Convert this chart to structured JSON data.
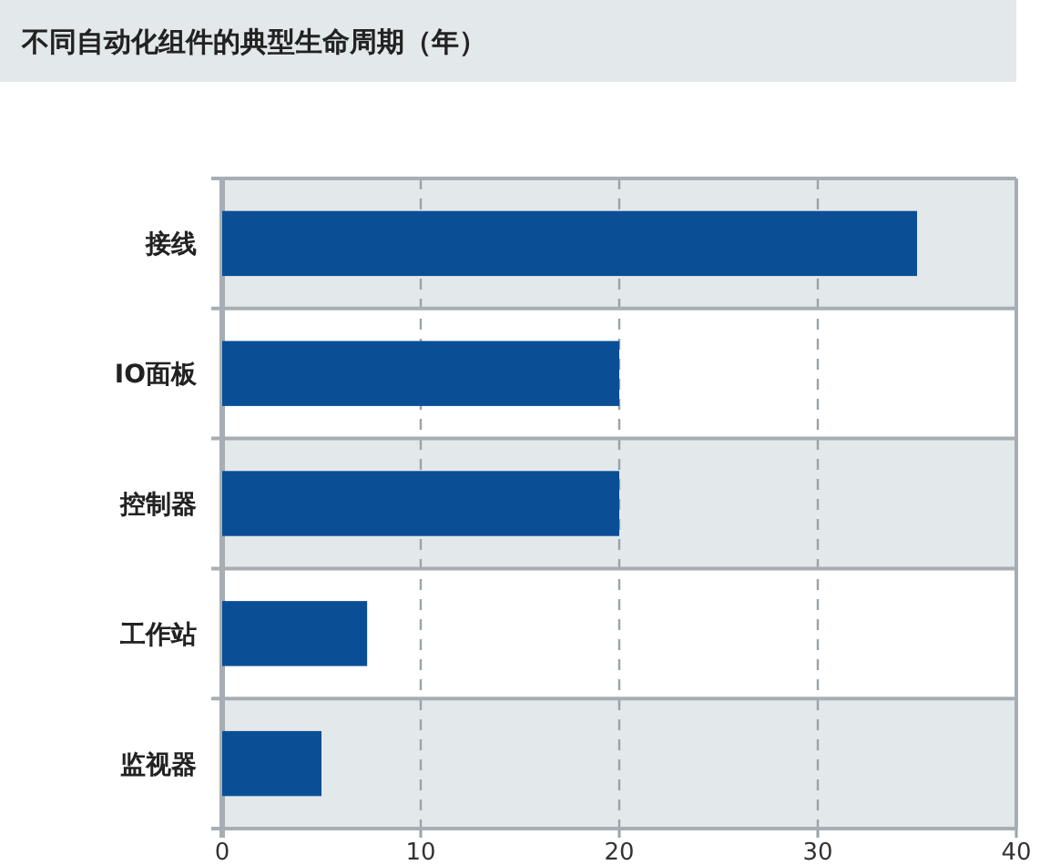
{
  "chart_data": {
    "type": "bar",
    "orientation": "horizontal",
    "title": "不同自动化组件的典型生命周期（年）",
    "categories": [
      "接线",
      "IO面板",
      "控制器",
      "工作站",
      "监视器"
    ],
    "values": [
      35,
      20,
      20,
      7.3,
      5
    ],
    "color": "#0a4f96",
    "xlim": [
      0,
      40
    ],
    "xticks": [
      0,
      10,
      20,
      30,
      40
    ],
    "grid": "x"
  }
}
